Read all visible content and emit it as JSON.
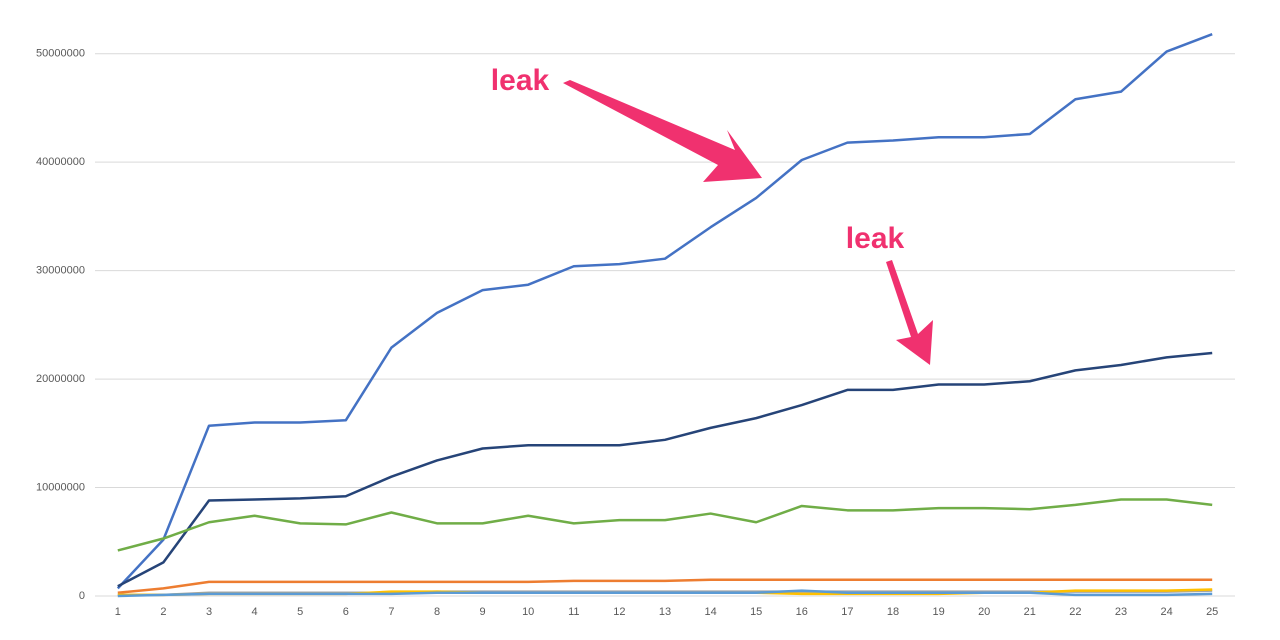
{
  "chart_data": {
    "type": "line",
    "categories": [
      "1",
      "2",
      "3",
      "4",
      "5",
      "6",
      "7",
      "8",
      "9",
      "10",
      "11",
      "12",
      "13",
      "14",
      "15",
      "16",
      "17",
      "18",
      "19",
      "20",
      "21",
      "22",
      "23",
      "24",
      "25"
    ],
    "ylim": [
      0,
      52000000
    ],
    "yticks": [
      0,
      10000000,
      20000000,
      30000000,
      40000000,
      50000000
    ],
    "grid": true,
    "annotations": [
      "leak",
      "leak"
    ],
    "series": [
      {
        "color": "#4472c4",
        "values": [
          700000,
          5200000,
          15700000,
          16000000,
          16000000,
          16200000,
          22900000,
          26100000,
          28200000,
          28700000,
          30400000,
          30600000,
          31100000,
          34000000,
          36700000,
          40200000,
          41800000,
          42000000,
          42300000,
          42300000,
          42600000,
          45800000,
          46500000,
          50200000,
          51800000
        ]
      },
      {
        "color": "#264478",
        "values": [
          900000,
          3100000,
          8800000,
          8900000,
          9000000,
          9200000,
          11000000,
          12500000,
          13600000,
          13900000,
          13900000,
          13900000,
          14400000,
          15500000,
          16400000,
          17600000,
          19000000,
          19000000,
          19500000,
          19500000,
          19800000,
          20800000,
          21300000,
          22000000,
          22400000
        ]
      },
      {
        "color": "#70ad47",
        "values": [
          4200000,
          5300000,
          6800000,
          7400000,
          6700000,
          6600000,
          7700000,
          6700000,
          6700000,
          7400000,
          6700000,
          7000000,
          7000000,
          7600000,
          6800000,
          8300000,
          7900000,
          7900000,
          8100000,
          8100000,
          8000000,
          8400000,
          8900000,
          8900000,
          8400000
        ]
      },
      {
        "color": "#ed7d31",
        "values": [
          300000,
          700000,
          1300000,
          1300000,
          1300000,
          1300000,
          1300000,
          1300000,
          1300000,
          1300000,
          1400000,
          1400000,
          1400000,
          1500000,
          1500000,
          1500000,
          1500000,
          1500000,
          1500000,
          1500000,
          1500000,
          1500000,
          1500000,
          1500000,
          1500000
        ]
      },
      {
        "color": "#a5a5a5",
        "values": [
          100000,
          100000,
          300000,
          300000,
          300000,
          300000,
          300000,
          400000,
          400000,
          400000,
          400000,
          400000,
          400000,
          400000,
          400000,
          400000,
          400000,
          400000,
          400000,
          400000,
          400000,
          400000,
          400000,
          400000,
          500000
        ]
      },
      {
        "color": "#ffc000",
        "values": [
          100000,
          100000,
          200000,
          200000,
          200000,
          200000,
          400000,
          400000,
          300000,
          300000,
          300000,
          300000,
          300000,
          300000,
          300000,
          200000,
          200000,
          200000,
          200000,
          300000,
          300000,
          500000,
          500000,
          500000,
          600000
        ]
      },
      {
        "color": "#5b9bd5",
        "values": [
          0,
          100000,
          200000,
          200000,
          200000,
          200000,
          200000,
          300000,
          300000,
          300000,
          300000,
          300000,
          300000,
          300000,
          300000,
          500000,
          300000,
          300000,
          300000,
          300000,
          300000,
          100000,
          100000,
          100000,
          200000
        ]
      }
    ]
  }
}
